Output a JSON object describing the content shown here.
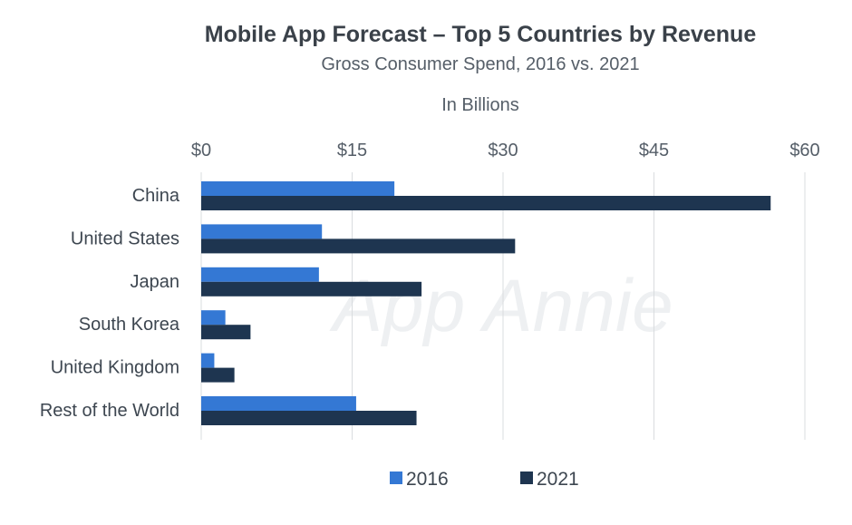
{
  "chart_data": {
    "type": "bar",
    "orientation": "horizontal",
    "title": "Mobile App Forecast – Top 5 Countries by Revenue",
    "subtitle": "Gross Consumer Spend, 2016 vs. 2021",
    "unit_label": "In Billions",
    "watermark": "App Annie",
    "categories": [
      "China",
      "United States",
      "Japan",
      "South Korea",
      "United Kingdom",
      "Rest of the World"
    ],
    "series": [
      {
        "name": "2016",
        "color": "#3478d4",
        "values": [
          19.2,
          12.0,
          11.7,
          2.4,
          1.3,
          15.4
        ]
      },
      {
        "name": "2021",
        "color": "#1e3550",
        "values": [
          56.6,
          31.2,
          21.9,
          4.9,
          3.3,
          21.4
        ]
      }
    ],
    "xlim": [
      0,
      60
    ],
    "x_ticks": [
      0,
      15,
      30,
      45,
      60
    ],
    "x_tick_labels": [
      "$0",
      "$15",
      "$30",
      "$45",
      "$60"
    ],
    "x_axis_position": "top",
    "grid": true,
    "legend_position": "bottom-center"
  }
}
